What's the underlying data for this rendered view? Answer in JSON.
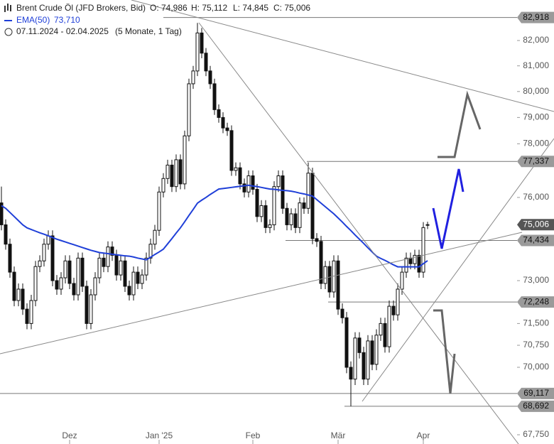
{
  "header": {
    "title": "Brent Crude Öl (JFD Brokers, Bid)",
    "open": {
      "value": 74986,
      "label": "O: 74,986"
    },
    "high": {
      "value": 75112,
      "label": "H: 75,112"
    },
    "low": {
      "value": 74845,
      "label": "L: 74,845"
    },
    "close": {
      "value": 75006,
      "label": "C: 75,006"
    },
    "ema_name": "EMA(50)",
    "ema_value": {
      "value": 73710,
      "label": "73,710"
    },
    "range": "07.11.2024 - 02.04.2025",
    "period": "(5 Monate, 1 Tag)"
  },
  "chart_data": {
    "type": "candlestick",
    "log": true,
    "ylim": [
      67448,
      83624
    ],
    "yticks": [
      {
        "value": 82000,
        "label": "82,000"
      },
      {
        "value": 81000,
        "label": "81,000"
      },
      {
        "value": 80000,
        "label": "80,000"
      },
      {
        "value": 79000,
        "label": "79,000"
      },
      {
        "value": 78000,
        "label": "78,000"
      },
      {
        "value": 76000,
        "label": "76,000"
      },
      {
        "value": 73000,
        "label": "73,000"
      },
      {
        "value": 71500,
        "label": "71,500"
      },
      {
        "value": 70750,
        "label": "70,750"
      },
      {
        "value": 70000,
        "label": "70,000"
      },
      {
        "value": 67750,
        "label": "67,750"
      }
    ],
    "categories": [
      null,
      null,
      null,
      null,
      null,
      null,
      null,
      null,
      null,
      null,
      null,
      null,
      null,
      null,
      null,
      null,
      "Dez",
      null,
      null,
      null,
      null,
      null,
      null,
      null,
      null,
      null,
      null,
      null,
      null,
      null,
      null,
      null,
      null,
      null,
      null,
      null,
      null,
      "Jan '25",
      null,
      null,
      null,
      null,
      null,
      null,
      null,
      null,
      null,
      null,
      null,
      null,
      null,
      null,
      null,
      null,
      null,
      null,
      null,
      null,
      null,
      "Feb",
      null,
      null,
      null,
      null,
      null,
      null,
      null,
      null,
      null,
      null,
      null,
      null,
      null,
      null,
      null,
      null,
      null,
      null,
      null,
      "Mär",
      null,
      null,
      null,
      null,
      null,
      null,
      null,
      null,
      null,
      null,
      null,
      null,
      null,
      null,
      null,
      null,
      null,
      null,
      null,
      "Apr",
      null
    ],
    "open": [
      75800,
      75000,
      74300,
      73300,
      72300,
      72700,
      72000,
      71500,
      72300,
      73500,
      73700,
      74300,
      74600,
      73000,
      72700,
      73100,
      73700,
      72900,
      72500,
      73800,
      72800,
      71500,
      72500,
      73100,
      73800,
      73500,
      74200,
      73900,
      73200,
      73700,
      72800,
      72500,
      73300,
      72900,
      73200,
      73800,
      74300,
      74800,
      76200,
      76700,
      77200,
      76400,
      77400,
      76500,
      78300,
      80300,
      80800,
      82300,
      81500,
      80800,
      80300,
      79300,
      79000,
      78600,
      78500,
      77000,
      77100,
      76500,
      76200,
      76800,
      76300,
      75300,
      75700,
      74900,
      75000,
      76400,
      76800,
      75600,
      75000,
      75400,
      74900,
      75800,
      75600,
      76900,
      74500,
      74400,
      72900,
      73500,
      72600,
      73700,
      72000,
      71700,
      70000,
      69600,
      71000,
      70500,
      69600,
      70900,
      70100,
      71100,
      71500,
      70700,
      72100,
      71800,
      72700,
      73300,
      73800,
      73600,
      73900,
      73300,
      74986
    ],
    "high": [
      76400,
      75200,
      74500,
      73500,
      72900,
      72900,
      72200,
      72500,
      73700,
      73900,
      74500,
      74800,
      74800,
      73200,
      73300,
      73900,
      73900,
      73100,
      74000,
      74000,
      73000,
      72700,
      73300,
      74000,
      74000,
      74400,
      74400,
      74100,
      73900,
      73900,
      73000,
      73500,
      73500,
      73400,
      74000,
      74500,
      75000,
      76400,
      76900,
      77400,
      77400,
      77600,
      77600,
      78500,
      80500,
      81000,
      82700,
      82500,
      81700,
      81000,
      80500,
      79500,
      79200,
      78800,
      78700,
      77300,
      77300,
      76700,
      77000,
      77000,
      76500,
      75900,
      75900,
      75200,
      76600,
      77000,
      77000,
      75800,
      75600,
      75600,
      76000,
      76000,
      77300,
      77100,
      74700,
      74600,
      73700,
      73700,
      73900,
      73900,
      72200,
      71900,
      70200,
      71200,
      71200,
      70700,
      71100,
      71100,
      71300,
      71700,
      71700,
      72300,
      72300,
      72900,
      73500,
      74000,
      74000,
      74100,
      74100,
      75100,
      75112
    ],
    "low": [
      74800,
      74100,
      73100,
      72100,
      72100,
      71800,
      71300,
      71300,
      72100,
      73300,
      73500,
      74100,
      72800,
      72500,
      72500,
      72900,
      72700,
      72300,
      72300,
      72600,
      71300,
      71300,
      72300,
      72900,
      73300,
      73300,
      73700,
      73000,
      73000,
      72600,
      72300,
      72300,
      72700,
      72700,
      73000,
      73600,
      74100,
      74600,
      76000,
      76500,
      76200,
      76200,
      76300,
      76300,
      78100,
      80100,
      80600,
      81300,
      80600,
      80100,
      79100,
      78800,
      78400,
      78300,
      76800,
      76800,
      76300,
      76000,
      76000,
      76100,
      75100,
      75100,
      74700,
      74700,
      74800,
      76200,
      75400,
      74800,
      74800,
      74700,
      74700,
      75400,
      75400,
      74300,
      74200,
      72700,
      72700,
      72400,
      72400,
      71800,
      71500,
      69800,
      68692,
      69400,
      70300,
      69400,
      69400,
      69900,
      69900,
      70900,
      70500,
      70500,
      71600,
      71600,
      72500,
      73100,
      73400,
      73400,
      73100,
      73100,
      74845
    ],
    "close": [
      75000,
      74300,
      73300,
      72300,
      72700,
      72000,
      71500,
      72300,
      73500,
      73700,
      74300,
      74600,
      73000,
      72700,
      73100,
      73700,
      72900,
      72500,
      73800,
      72800,
      71500,
      72500,
      73100,
      73800,
      73500,
      74200,
      73900,
      73200,
      73700,
      72800,
      72500,
      73300,
      72900,
      73200,
      73800,
      74300,
      74800,
      76200,
      76700,
      77200,
      76400,
      77400,
      76500,
      78300,
      80300,
      80800,
      82300,
      81500,
      80800,
      80300,
      79300,
      79000,
      78600,
      78500,
      77000,
      77100,
      76500,
      76200,
      76800,
      76300,
      75300,
      75700,
      74900,
      75000,
      76400,
      76800,
      75600,
      75000,
      75400,
      74900,
      75800,
      75600,
      76900,
      74500,
      74400,
      72900,
      73500,
      72600,
      73700,
      72000,
      71700,
      70000,
      69600,
      71000,
      70500,
      69600,
      70900,
      70100,
      71100,
      71500,
      70700,
      72100,
      71800,
      72700,
      73300,
      73800,
      73600,
      73900,
      73300,
      74900,
      75006
    ],
    "series": [
      {
        "name": "EMA(50)",
        "color": "#1f3fd8",
        "values": [
          75700,
          75600,
          75450,
          75300,
          75150,
          75000,
          74890,
          74830,
          74770,
          74710,
          74660,
          74600,
          74540,
          74480,
          74430,
          74380,
          74330,
          74280,
          74230,
          74180,
          74130,
          74080,
          74040,
          74000,
          73980,
          73960,
          73940,
          73920,
          73900,
          73880,
          73870,
          73840,
          73800,
          73770,
          73740,
          73830,
          73930,
          74020,
          74120,
          74310,
          74500,
          74700,
          74890,
          75110,
          75340,
          75560,
          75790,
          75900,
          76000,
          76110,
          76210,
          76310,
          76330,
          76350,
          76370,
          76390,
          76410,
          76430,
          76450,
          76420,
          76400,
          76370,
          76340,
          76310,
          76300,
          76280,
          76260,
          76250,
          76230,
          76200,
          76160,
          76130,
          76090,
          76050,
          75920,
          75790,
          75660,
          75530,
          75400,
          75250,
          75100,
          74940,
          74790,
          74630,
          74480,
          74330,
          74170,
          74020,
          73870,
          73790,
          73720,
          73640,
          73560,
          73490,
          73490,
          73490,
          73490,
          73490,
          73490,
          73600,
          73710
        ]
      }
    ],
    "levels": [
      {
        "value": 82918,
        "label": "82,918"
      },
      {
        "value": 77337,
        "label": "77,337"
      },
      {
        "value": 75006,
        "label": "75,006"
      },
      {
        "value": 74434,
        "label": "74,434"
      },
      {
        "value": 72248,
        "label": "72,248"
      },
      {
        "value": 69117,
        "label": "69,117"
      },
      {
        "value": 68692,
        "label": "68,692"
      }
    ]
  }
}
